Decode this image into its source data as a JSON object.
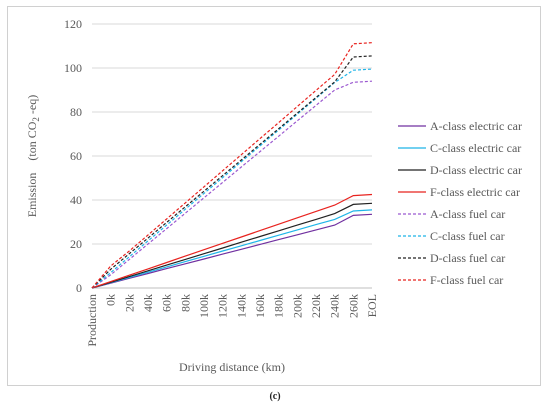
{
  "caption": "(c)",
  "chart_data": {
    "type": "line",
    "title": "",
    "xlabel": "Driving distance (km)",
    "ylabel_parts": {
      "main": "Emission　(ton CO",
      "sub": "2",
      "tail": " -eq)"
    },
    "ylim": [
      0,
      120
    ],
    "yticks": [
      0,
      20,
      40,
      60,
      80,
      100,
      120
    ],
    "grid": "horizontal",
    "legend_position": "right",
    "categories": [
      "Production",
      "0k",
      "20k",
      "40k",
      "60k",
      "80k",
      "100k",
      "120k",
      "140k",
      "160k",
      "180k",
      "200k",
      "220k",
      "240k",
      "260k",
      "EOL"
    ],
    "series": [
      {
        "name": "A-class electric car",
        "color": "#7030a0",
        "dash": "solid",
        "values": [
          0,
          2.2,
          4.4,
          6.6,
          8.8,
          11.0,
          13.2,
          15.4,
          17.6,
          19.8,
          22.0,
          24.2,
          26.4,
          28.6,
          33.0,
          33.5
        ]
      },
      {
        "name": "C-class electric car",
        "color": "#1fb5e8",
        "dash": "solid",
        "values": [
          0,
          2.4,
          4.8,
          7.2,
          9.6,
          12.0,
          14.4,
          16.8,
          19.2,
          21.6,
          24.0,
          26.4,
          28.8,
          31.2,
          35.0,
          35.5
        ]
      },
      {
        "name": "D-class electric car",
        "color": "#222222",
        "dash": "solid",
        "values": [
          0,
          2.6,
          5.2,
          7.8,
          10.4,
          13.0,
          15.6,
          18.2,
          20.8,
          23.4,
          26.0,
          28.6,
          31.2,
          33.8,
          38.0,
          38.5
        ]
      },
      {
        "name": "F-class electric car",
        "color": "#e8231f",
        "dash": "solid",
        "values": [
          0,
          2.9,
          5.8,
          8.7,
          11.6,
          14.5,
          17.4,
          20.3,
          23.2,
          26.1,
          29.0,
          31.9,
          34.8,
          37.7,
          42.0,
          42.5
        ]
      },
      {
        "name": "A-class fuel car",
        "color": "#9b59d0",
        "dash": "dashed",
        "values": [
          0,
          6.0,
          13.0,
          20.0,
          27.0,
          34.0,
          41.0,
          48.0,
          55.0,
          62.0,
          69.0,
          76.0,
          83.0,
          90.0,
          93.5,
          94.0
        ]
      },
      {
        "name": "C-class fuel car",
        "color": "#1fb5e8",
        "dash": "dashed",
        "values": [
          0,
          7.0,
          14.2,
          21.4,
          28.6,
          35.8,
          43.0,
          50.2,
          57.4,
          64.6,
          71.8,
          79.0,
          86.2,
          93.4,
          99.0,
          99.5
        ]
      },
      {
        "name": "D-class fuel car",
        "color": "#222222",
        "dash": "dashed",
        "values": [
          0,
          8.5,
          15.6,
          22.7,
          29.8,
          36.9,
          44.0,
          51.1,
          58.2,
          65.3,
          72.4,
          79.5,
          86.6,
          93.7,
          105.0,
          105.5
        ]
      },
      {
        "name": "F-class fuel car",
        "color": "#e8231f",
        "dash": "dashed",
        "values": [
          0,
          10.0,
          16.8,
          24.1,
          31.4,
          38.7,
          46.0,
          53.3,
          60.6,
          67.9,
          75.2,
          82.5,
          89.8,
          97.1,
          111.0,
          111.5
        ]
      }
    ]
  }
}
